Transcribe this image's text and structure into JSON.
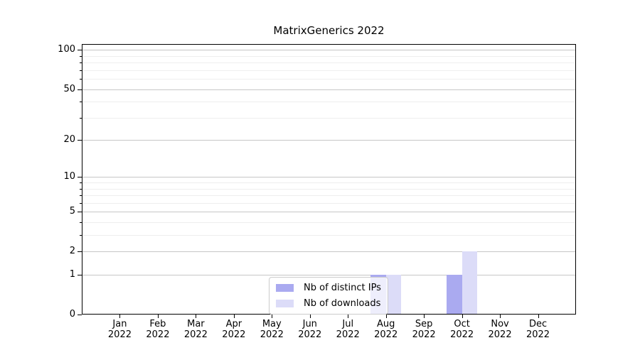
{
  "chart_data": {
    "type": "bar",
    "title": "MatrixGenerics 2022",
    "categories": [
      "Jan",
      "Feb",
      "Mar",
      "Apr",
      "May",
      "Jun",
      "Jul",
      "Aug",
      "Sep",
      "Oct",
      "Nov",
      "Dec"
    ],
    "category_year": "2022",
    "series": [
      {
        "name": "Nb of distinct IPs",
        "color": "#aaaaf0",
        "values": [
          0,
          0,
          0,
          0,
          0,
          0,
          0,
          1,
          0,
          1,
          0,
          0
        ]
      },
      {
        "name": "Nb of downloads",
        "color": "#dcdcf8",
        "values": [
          0,
          0,
          0,
          0,
          0,
          0,
          0,
          1,
          0,
          2,
          0,
          0
        ]
      }
    ],
    "xlabel": "",
    "ylabel": "",
    "yscale": "log1p",
    "ylim": [
      0,
      111
    ],
    "y_major_ticks": [
      0,
      1,
      2,
      5,
      10,
      20,
      50,
      100
    ],
    "y_minor_ticks": [
      3,
      4,
      6,
      7,
      8,
      9,
      30,
      40,
      60,
      70,
      80,
      90
    ],
    "grid": "both",
    "legend_position": "inside-lower-center"
  }
}
